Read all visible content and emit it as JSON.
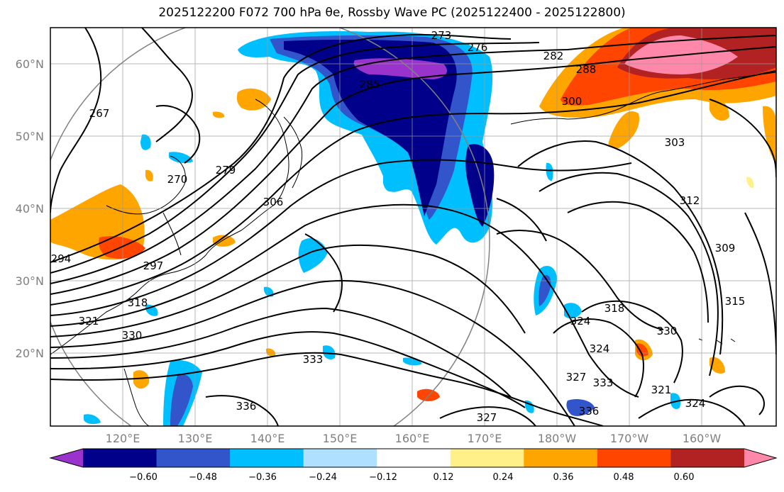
{
  "title": "2025122200 F072 700 hPa θe, Rossby Wave PC (2025122400 - 2025122800)",
  "lat_labels": [
    "60°N",
    "50°N",
    "40°N",
    "30°N",
    "20°N"
  ],
  "lon_labels": [
    "120°E",
    "130°E",
    "140°E",
    "150°E",
    "160°E",
    "170°E",
    "180°W",
    "170°W",
    "160°W"
  ],
  "contour_labels": [
    "273",
    "276",
    "282",
    "288",
    "300",
    "303",
    "267",
    "270",
    "279",
    "285",
    "294",
    "297",
    "306",
    "312",
    "309",
    "315",
    "318",
    "321",
    "324",
    "318",
    "330",
    "327",
    "324",
    "333",
    "330",
    "321",
    "324",
    "336",
    "327",
    "336",
    "333"
  ],
  "colorbar": {
    "labels": [
      "−0.60",
      "−0.48",
      "−0.36",
      "−0.24",
      "−0.12",
      "0.12",
      "0.24",
      "0.36",
      "0.48",
      "0.60"
    ],
    "colors": [
      "#9933cc",
      "#00008b",
      "#3355cc",
      "#00bfff",
      "#b0e0ff",
      "#ffffff",
      "#fff08a",
      "#ffa500",
      "#ff4500",
      "#b22222",
      "#ff88aa"
    ]
  }
}
